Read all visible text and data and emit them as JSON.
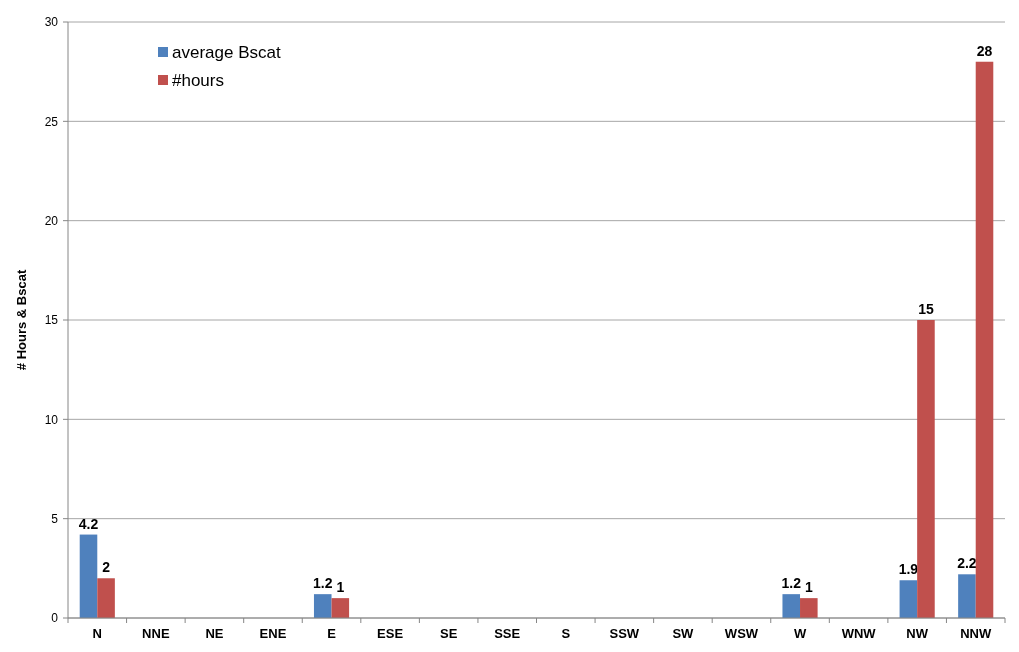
{
  "chart_data": {
    "type": "bar",
    "ylabel": "# Hours & Bscat",
    "categories": [
      "N",
      "NNE",
      "NE",
      "ENE",
      "E",
      "ESE",
      "SE",
      "SSE",
      "S",
      "SSW",
      "SW",
      "WSW",
      "W",
      "WNW",
      "NW",
      "NNW"
    ],
    "series": [
      {
        "name": "average Bscat",
        "color": "#4f81bd",
        "values": [
          4.2,
          null,
          null,
          null,
          1.2,
          null,
          null,
          null,
          null,
          null,
          null,
          null,
          1.2,
          null,
          1.9,
          2.2
        ]
      },
      {
        "name": "#hours",
        "color": "#c0504d",
        "values": [
          2,
          null,
          null,
          null,
          1,
          null,
          null,
          null,
          null,
          null,
          null,
          null,
          1,
          null,
          15,
          28
        ]
      }
    ],
    "ylim": [
      0,
      30
    ],
    "yticks": [
      0,
      5,
      10,
      15,
      20,
      25,
      30
    ],
    "grid": "y",
    "legend": "top left",
    "data_labels": true
  }
}
